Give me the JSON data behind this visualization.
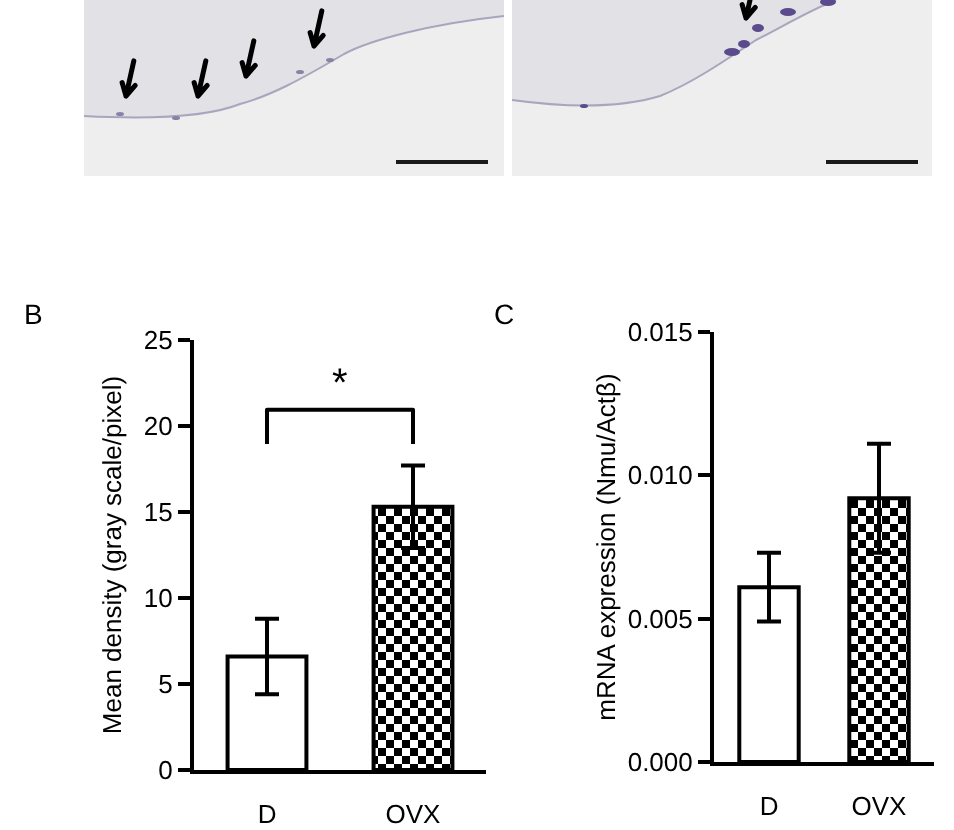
{
  "chart_data": [
    {
      "type": "bar",
      "title": "B",
      "ylabel": "Mean density (gray scale/pixel)",
      "categories": [
        "D",
        "OVX"
      ],
      "values": [
        6.6,
        15.3
      ],
      "errors": [
        2.2,
        2.4
      ],
      "colors": [
        "#ffffff",
        "#000000"
      ],
      "ylim": [
        0,
        25
      ],
      "yticks": [
        0,
        5,
        10,
        15,
        20,
        25
      ],
      "annotations": [
        "*"
      ]
    },
    {
      "type": "bar",
      "title": "C",
      "ylabel": "mRNA expression (Nmu/Actβ)",
      "categories": [
        "D",
        "OVX"
      ],
      "values": [
        0.0061,
        0.0092
      ],
      "errors": [
        0.0012,
        0.0019
      ],
      "colors": [
        "#ffffff",
        "#000000"
      ],
      "ylim": [
        0,
        0.015
      ],
      "yticks": [
        {
          "value": 0,
          "label": "0.000"
        },
        {
          "value": 0.005,
          "label": "0.005"
        },
        {
          "value": 0.01,
          "label": "0.010"
        },
        {
          "value": 0.015,
          "label": "0.015"
        }
      ]
    }
  ]
}
